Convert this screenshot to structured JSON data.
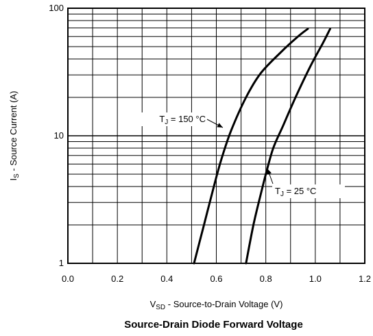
{
  "chart_data": {
    "type": "line",
    "title": "Source-Drain Diode Forward Voltage",
    "xlabel": {
      "main": "V",
      "sub": "SD",
      "rest": " - Source-to-Drain Voltage (V)"
    },
    "ylabel": {
      "main": "I",
      "sub": "S",
      "rest": " - Source Current (A)"
    },
    "xlim": [
      0,
      1.2
    ],
    "ylim": [
      1,
      100
    ],
    "yscale": "log",
    "grid": true,
    "x_ticks": [
      {
        "value": 0.0,
        "label": "0.0"
      },
      {
        "value": 0.2,
        "label": "0.2"
      },
      {
        "value": 0.4,
        "label": "0.4"
      },
      {
        "value": 0.6,
        "label": "0.6"
      },
      {
        "value": 0.8,
        "label": "0.8"
      },
      {
        "value": 1.0,
        "label": "1.0"
      },
      {
        "value": 1.2,
        "label": "1.2"
      }
    ],
    "y_ticks": [
      {
        "value": 1,
        "label": "1"
      },
      {
        "value": 10,
        "label": "10"
      },
      {
        "value": 100,
        "label": "100"
      }
    ],
    "series": [
      {
        "annotation": {
          "main": "T",
          "sub": "J",
          "rest": " = 150 °C"
        },
        "points": [
          [
            0.51,
            1.0
          ],
          [
            0.55,
            2.0
          ],
          [
            0.59,
            4.0
          ],
          [
            0.62,
            6.5
          ],
          [
            0.66,
            11.0
          ],
          [
            0.72,
            20.0
          ],
          [
            0.78,
            31.0
          ],
          [
            0.86,
            45.0
          ],
          [
            0.93,
            60.0
          ],
          [
            0.97,
            69.0
          ]
        ]
      },
      {
        "annotation": {
          "main": "T",
          "sub": "J",
          "rest": " = 25 °C"
        },
        "points": [
          [
            0.72,
            1.0
          ],
          [
            0.75,
            2.0
          ],
          [
            0.78,
            3.5
          ],
          [
            0.8,
            5.0
          ],
          [
            0.83,
            8.0
          ],
          [
            0.87,
            12.0
          ],
          [
            0.92,
            20.0
          ],
          [
            0.98,
            35.0
          ],
          [
            1.03,
            53.0
          ],
          [
            1.06,
            69.0
          ]
        ]
      }
    ]
  }
}
